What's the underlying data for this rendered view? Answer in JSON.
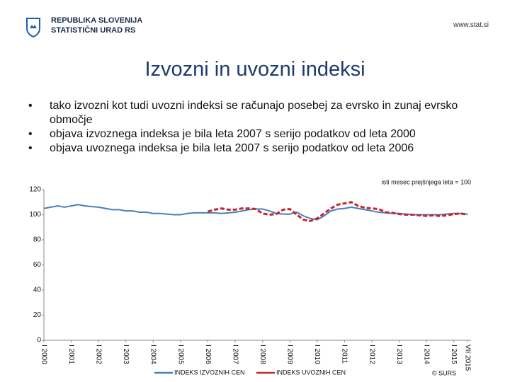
{
  "header": {
    "org_line1": "REPUBLIKA SLOVENIJA",
    "org_line2": "STATISTIČNI URAD RS",
    "url": "www.stat.si"
  },
  "title": "Izvozni in uvozni indeksi",
  "bullets": [
    "tako izvozni kot tudi uvozni indeksi se računajo posebej za evrsko in zunaj evrsko območje",
    "objava izvoznega indeksa je bila leta 2007 s serijo podatkov od leta 2000",
    "objava uvoznega indeksa je bila leta 2007 s serijo podatkov od leta 2006"
  ],
  "chart_data": {
    "type": "line",
    "annotation": "isti mesec prejšnjega leta = 100",
    "source": "© SURS",
    "x": [
      2000,
      2000.25,
      2000.5,
      2000.75,
      2001,
      2001.25,
      2001.5,
      2001.75,
      2002,
      2002.25,
      2002.5,
      2002.75,
      2003,
      2003.25,
      2003.5,
      2003.75,
      2004,
      2004.25,
      2004.5,
      2004.75,
      2005,
      2005.25,
      2005.5,
      2005.75,
      2006,
      2006.25,
      2006.5,
      2006.75,
      2007,
      2007.25,
      2007.5,
      2007.75,
      2008,
      2008.25,
      2008.5,
      2008.75,
      2009,
      2009.25,
      2009.5,
      2009.75,
      2010,
      2010.25,
      2010.5,
      2010.75,
      2011,
      2011.25,
      2011.5,
      2011.75,
      2012,
      2012.25,
      2012.5,
      2012.75,
      2013,
      2013.25,
      2013.5,
      2013.75,
      2014,
      2014.25,
      2014.5,
      2014.75,
      2015,
      2015.25,
      2015.5
    ],
    "series": [
      {
        "name": "INDEKS IZVOZNIH CEN",
        "color": "#4a7ebb",
        "dashed": false,
        "values": [
          105,
          106,
          107,
          106,
          107,
          108,
          107,
          106.5,
          106,
          105,
          104,
          104,
          103,
          103,
          102,
          102,
          101,
          101,
          100.5,
          100,
          100,
          101,
          101.5,
          101.5,
          101.5,
          101.5,
          101,
          101.5,
          102,
          103,
          104,
          104.5,
          104.5,
          103,
          101,
          100.5,
          100.5,
          102,
          99,
          97,
          96,
          99,
          103,
          104.5,
          105,
          106,
          105,
          104,
          103,
          102,
          101.5,
          101,
          101,
          100.5,
          100,
          100,
          100,
          100,
          100,
          100.5,
          101,
          101,
          100.5
        ]
      },
      {
        "name": "INDEKS UVOZNIH CEN",
        "color": "#c0282d",
        "dashed": true,
        "values": [
          null,
          null,
          null,
          null,
          null,
          null,
          null,
          null,
          null,
          null,
          null,
          null,
          null,
          null,
          null,
          null,
          null,
          null,
          null,
          null,
          null,
          null,
          null,
          null,
          102.5,
          104,
          105,
          104,
          104,
          105,
          105,
          104.5,
          101,
          100,
          100.5,
          104,
          104.5,
          100,
          96,
          95,
          97,
          101,
          105,
          108,
          109,
          110,
          107,
          105.5,
          105,
          104.5,
          102,
          101.5,
          100.5,
          100,
          100,
          99.5,
          99,
          99.5,
          99,
          99.5,
          100.5,
          101,
          100
        ]
      }
    ],
    "xlim": [
      2000,
      2015.5
    ],
    "xticks": [
      {
        "value": 2000,
        "label": "I 2000"
      },
      {
        "value": 2001,
        "label": "I 2001"
      },
      {
        "value": 2002,
        "label": "I 2002"
      },
      {
        "value": 2003,
        "label": "I 2003"
      },
      {
        "value": 2004,
        "label": "I 2004"
      },
      {
        "value": 2005,
        "label": "I 2005"
      },
      {
        "value": 2006,
        "label": "I 2006"
      },
      {
        "value": 2007,
        "label": "I 2007"
      },
      {
        "value": 2008,
        "label": "I 2008"
      },
      {
        "value": 2009,
        "label": "I 2009"
      },
      {
        "value": 2010,
        "label": "I 2010"
      },
      {
        "value": 2011,
        "label": "I 2011"
      },
      {
        "value": 2012,
        "label": "I 2012"
      },
      {
        "value": 2013,
        "label": "I 2013"
      },
      {
        "value": 2014,
        "label": "I 2014"
      },
      {
        "value": 2015,
        "label": "I 2015"
      },
      {
        "value": 2015.5,
        "label": "VII 2015"
      }
    ],
    "ylim": [
      0,
      120
    ],
    "yticks": [
      0,
      20,
      40,
      60,
      80,
      100,
      120
    ],
    "grid": false,
    "legend": "bottom"
  }
}
